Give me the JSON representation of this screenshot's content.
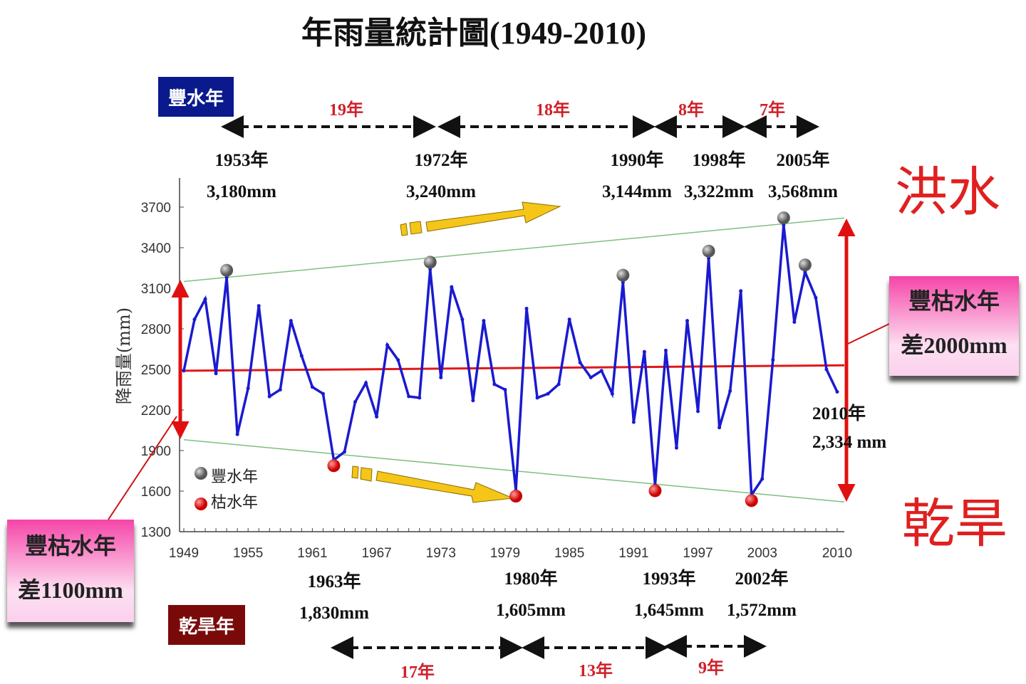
{
  "chart_data": {
    "type": "line",
    "title": "年雨量統計圖(1949-2010)",
    "ylabel": "降雨量(mm)",
    "xlabel": "",
    "ylim": [
      1300,
      3700
    ],
    "xlim": [
      1949,
      2010
    ],
    "yticks": [
      1300,
      1600,
      1900,
      2200,
      2500,
      2800,
      3100,
      3400,
      3700
    ],
    "xticks": [
      1949,
      1955,
      1961,
      1967,
      1973,
      1979,
      1985,
      1991,
      1997,
      2003,
      2010
    ],
    "grid": false,
    "series_color": "#1a1ad0",
    "x": [
      1949,
      1950,
      1951,
      1952,
      1953,
      1954,
      1955,
      1956,
      1957,
      1958,
      1959,
      1960,
      1961,
      1962,
      1963,
      1964,
      1965,
      1966,
      1967,
      1968,
      1969,
      1970,
      1971,
      1972,
      1973,
      1974,
      1975,
      1976,
      1977,
      1978,
      1979,
      1980,
      1981,
      1982,
      1983,
      1984,
      1985,
      1986,
      1987,
      1988,
      1989,
      1990,
      1991,
      1992,
      1993,
      1994,
      1995,
      1996,
      1997,
      1998,
      1999,
      2000,
      2001,
      2002,
      2003,
      2004,
      2005,
      2006,
      2007,
      2008,
      2009,
      2010
    ],
    "values": [
      2490,
      2870,
      3020,
      2470,
      3180,
      2020,
      2360,
      2970,
      2300,
      2350,
      2860,
      2600,
      2370,
      2320,
      1830,
      1890,
      2260,
      2400,
      2150,
      2680,
      2570,
      2300,
      2290,
      3240,
      2440,
      3110,
      2870,
      2270,
      2860,
      2390,
      2350,
      1605,
      2950,
      2290,
      2320,
      2390,
      2870,
      2550,
      2440,
      2490,
      2320,
      3144,
      2110,
      2630,
      1645,
      2640,
      1920,
      2860,
      2190,
      3322,
      2070,
      2340,
      3080,
      1572,
      1690,
      2570,
      3568,
      2850,
      3220,
      3030,
      2500,
      2334
    ],
    "wet_years": [
      1953,
      1972,
      1990,
      1998,
      2005,
      2007
    ],
    "dry_years": [
      1963,
      1980,
      1993,
      2002
    ],
    "mean_line": {
      "start": [
        1949,
        2490
      ],
      "end": [
        2010,
        2530
      ],
      "color": "#e01818"
    },
    "upper_trend": {
      "start": [
        1949,
        3150
      ],
      "end": [
        2010,
        3620
      ],
      "color": "#7fbf7f"
    },
    "lower_trend": {
      "start": [
        1949,
        1980
      ],
      "end": [
        2010,
        1520
      ],
      "color": "#7fbf7f"
    },
    "legend": {
      "placement": "bottom-left",
      "wet": "豐水年",
      "dry": "枯水年",
      "wet_color": "#808080",
      "dry_color": "#e01010"
    },
    "annotations": {
      "wet_box": "豐水年",
      "dry_box": "乾旱年",
      "wet_intervals": [
        "19年",
        "18年",
        "8年",
        "7年"
      ],
      "dry_intervals": [
        "17年",
        "13年",
        "9年"
      ],
      "wet_labels": [
        {
          "year": "1953年",
          "value": "3,180mm"
        },
        {
          "year": "1972年",
          "value": "3,240mm"
        },
        {
          "year": "1990年",
          "value": "3,144mm"
        },
        {
          "year": "1998年",
          "value": "3,322mm"
        },
        {
          "year": "2005年",
          "value": "3,568mm"
        }
      ],
      "dry_labels": [
        {
          "year": "1963年",
          "value": "1,830mm"
        },
        {
          "year": "1980年",
          "value": "1,605mm"
        },
        {
          "year": "1993年",
          "value": "1,645mm"
        },
        {
          "year": "2002年",
          "value": "1,572mm"
        }
      ],
      "last_label": {
        "year": "2010年",
        "value": "2,334 mm"
      },
      "flood": "洪水",
      "drought": "乾旱",
      "diff_right": {
        "line1": "豐枯水年",
        "line2": "差2000mm"
      },
      "diff_left": {
        "line1": "豐枯水年",
        "line2": "差1100mm"
      }
    },
    "colors": {
      "wet_box": "#0a1a8c",
      "dry_box": "#7a0a0a",
      "interval_text": "#d0202a",
      "trend_arrow": "#f5c518"
    }
  }
}
